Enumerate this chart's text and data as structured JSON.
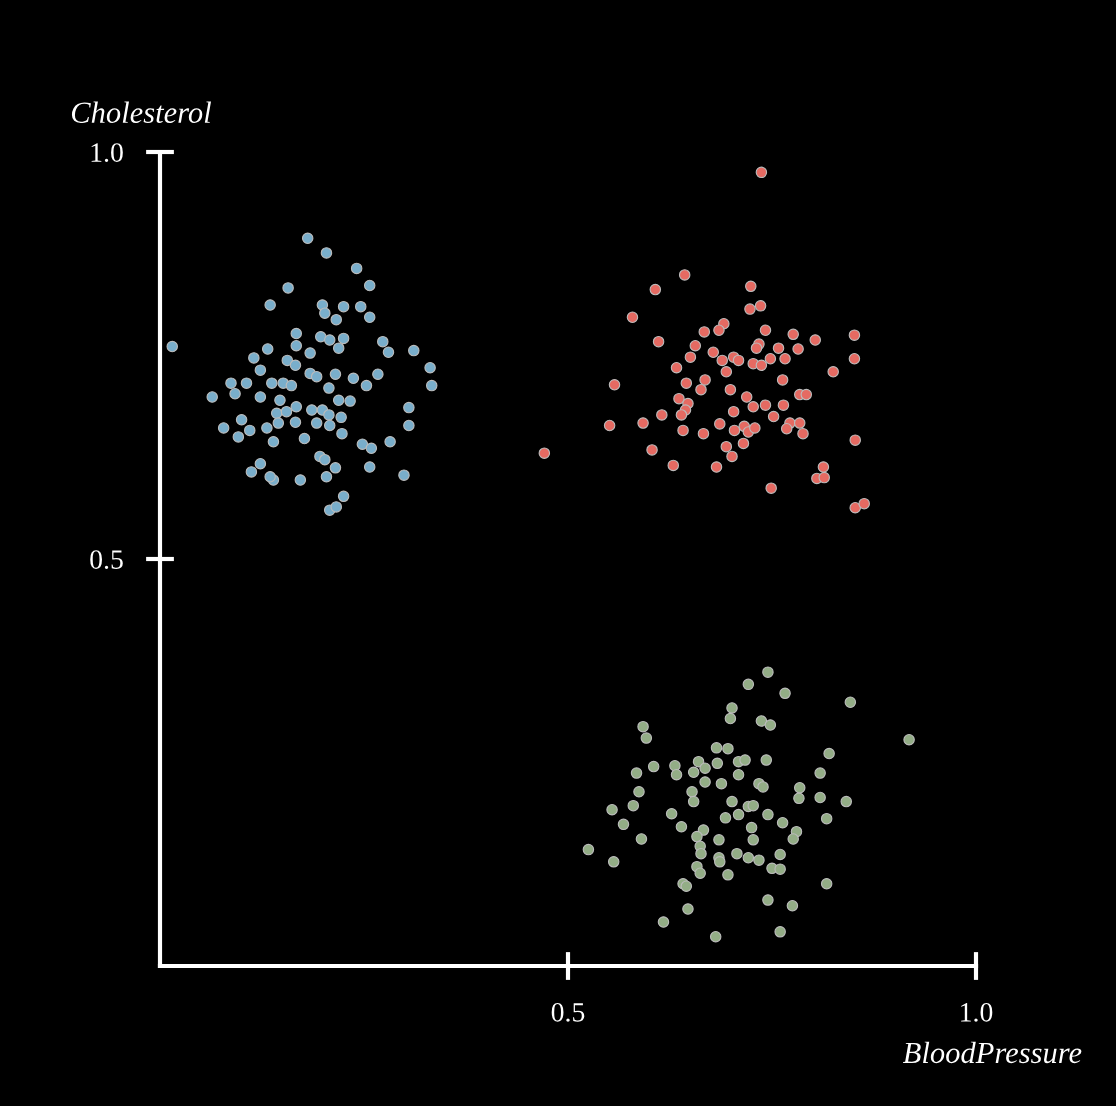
{
  "chart_data": {
    "type": "scatter",
    "xlabel": "BloodPressure",
    "ylabel": "Cholesterol",
    "xlim": [
      0,
      1.0
    ],
    "ylim": [
      0,
      1.0
    ],
    "xticks": [
      {
        "value": 0.5,
        "label": "0.5"
      },
      {
        "value": 1.0,
        "label": "1.0"
      }
    ],
    "yticks": [
      {
        "value": 0.5,
        "label": "0.5"
      },
      {
        "value": 1.0,
        "label": "1.0"
      }
    ],
    "grid": false,
    "marker": "circle",
    "series": [
      {
        "color": "#79aecb",
        "x": [
          0.181,
          0.204,
          0.241,
          0.157,
          0.257,
          0.135,
          0.199,
          0.225,
          0.246,
          0.202,
          0.216,
          0.257,
          0.167,
          0.197,
          0.208,
          0.225,
          0.273,
          0.28,
          0.311,
          0.015,
          0.132,
          0.167,
          0.184,
          0.219,
          0.115,
          0.156,
          0.166,
          0.123,
          0.184,
          0.192,
          0.215,
          0.237,
          0.267,
          0.331,
          0.333,
          0.087,
          0.106,
          0.137,
          0.151,
          0.161,
          0.207,
          0.253,
          0.064,
          0.092,
          0.123,
          0.147,
          0.219,
          0.233,
          0.143,
          0.155,
          0.167,
          0.186,
          0.199,
          0.207,
          0.222,
          0.305,
          0.1,
          0.078,
          0.11,
          0.131,
          0.145,
          0.166,
          0.192,
          0.208,
          0.223,
          0.305,
          0.096,
          0.139,
          0.177,
          0.248,
          0.259,
          0.282,
          0.196,
          0.202,
          0.215,
          0.257,
          0.123,
          0.112,
          0.139,
          0.135,
          0.172,
          0.204,
          0.299,
          0.225,
          0.208,
          0.216
        ],
        "values": [
          0.894,
          0.876,
          0.857,
          0.833,
          0.836,
          0.812,
          0.812,
          0.81,
          0.81,
          0.802,
          0.794,
          0.797,
          0.777,
          0.773,
          0.769,
          0.771,
          0.767,
          0.754,
          0.756,
          0.761,
          0.758,
          0.762,
          0.753,
          0.759,
          0.747,
          0.744,
          0.738,
          0.732,
          0.728,
          0.724,
          0.727,
          0.722,
          0.727,
          0.735,
          0.713,
          0.716,
          0.716,
          0.716,
          0.716,
          0.713,
          0.71,
          0.713,
          0.699,
          0.703,
          0.699,
          0.695,
          0.695,
          0.694,
          0.679,
          0.681,
          0.687,
          0.683,
          0.683,
          0.677,
          0.674,
          0.686,
          0.671,
          0.661,
          0.658,
          0.661,
          0.667,
          0.668,
          0.667,
          0.664,
          0.654,
          0.664,
          0.65,
          0.644,
          0.648,
          0.641,
          0.636,
          0.644,
          0.626,
          0.622,
          0.612,
          0.613,
          0.617,
          0.607,
          0.597,
          0.601,
          0.597,
          0.601,
          0.603,
          0.577,
          0.56,
          0.564
        ]
      },
      {
        "color": "#e56a62",
        "x": [
          0.737,
          0.643,
          0.607,
          0.724,
          0.579,
          0.723,
          0.736,
          0.691,
          0.667,
          0.685,
          0.611,
          0.656,
          0.734,
          0.742,
          0.776,
          0.803,
          0.851,
          0.678,
          0.703,
          0.731,
          0.758,
          0.782,
          0.65,
          0.689,
          0.709,
          0.727,
          0.748,
          0.766,
          0.851,
          0.633,
          0.694,
          0.737,
          0.825,
          0.668,
          0.645,
          0.663,
          0.699,
          0.763,
          0.557,
          0.719,
          0.742,
          0.764,
          0.784,
          0.792,
          0.636,
          0.647,
          0.644,
          0.703,
          0.727,
          0.615,
          0.639,
          0.592,
          0.686,
          0.716,
          0.752,
          0.772,
          0.784,
          0.788,
          0.551,
          0.641,
          0.666,
          0.704,
          0.721,
          0.729,
          0.768,
          0.852,
          0.694,
          0.701,
          0.715,
          0.603,
          0.471,
          0.629,
          0.682,
          0.813,
          0.805,
          0.814,
          0.749,
          0.852,
          0.863
        ],
        "values": [
          0.975,
          0.849,
          0.831,
          0.835,
          0.797,
          0.807,
          0.811,
          0.789,
          0.779,
          0.781,
          0.767,
          0.762,
          0.764,
          0.781,
          0.776,
          0.769,
          0.775,
          0.754,
          0.748,
          0.759,
          0.759,
          0.758,
          0.748,
          0.744,
          0.744,
          0.74,
          0.746,
          0.746,
          0.746,
          0.735,
          0.73,
          0.738,
          0.73,
          0.72,
          0.716,
          0.708,
          0.708,
          0.72,
          0.714,
          0.699,
          0.689,
          0.689,
          0.702,
          0.702,
          0.697,
          0.691,
          0.683,
          0.681,
          0.687,
          0.677,
          0.677,
          0.667,
          0.666,
          0.663,
          0.675,
          0.667,
          0.667,
          0.654,
          0.664,
          0.658,
          0.654,
          0.658,
          0.656,
          0.661,
          0.66,
          0.646,
          0.638,
          0.626,
          0.642,
          0.634,
          0.63,
          0.615,
          0.613,
          0.613,
          0.599,
          0.6,
          0.587,
          0.563,
          0.568
        ]
      },
      {
        "color": "#93ad86",
        "x": [
          0.745,
          0.721,
          0.766,
          0.846,
          0.701,
          0.699,
          0.737,
          0.748,
          0.592,
          0.596,
          0.918,
          0.682,
          0.696,
          0.82,
          0.743,
          0.709,
          0.717,
          0.66,
          0.605,
          0.631,
          0.584,
          0.633,
          0.654,
          0.668,
          0.683,
          0.709,
          0.809,
          0.734,
          0.739,
          0.784,
          0.688,
          0.668,
          0.587,
          0.652,
          0.783,
          0.809,
          0.841,
          0.58,
          0.554,
          0.627,
          0.654,
          0.701,
          0.721,
          0.727,
          0.745,
          0.709,
          0.693,
          0.817,
          0.568,
          0.639,
          0.666,
          0.725,
          0.763,
          0.78,
          0.776,
          0.59,
          0.658,
          0.685,
          0.662,
          0.727,
          0.525,
          0.663,
          0.685,
          0.707,
          0.721,
          0.734,
          0.76,
          0.556,
          0.658,
          0.662,
          0.686,
          0.696,
          0.75,
          0.76,
          0.641,
          0.645,
          0.817,
          0.745,
          0.775,
          0.647,
          0.617,
          0.681,
          0.76
        ],
        "values": [
          0.361,
          0.346,
          0.335,
          0.324,
          0.317,
          0.304,
          0.301,
          0.296,
          0.294,
          0.28,
          0.278,
          0.268,
          0.267,
          0.261,
          0.253,
          0.251,
          0.253,
          0.251,
          0.245,
          0.246,
          0.237,
          0.235,
          0.238,
          0.243,
          0.249,
          0.235,
          0.237,
          0.224,
          0.22,
          0.219,
          0.224,
          0.226,
          0.214,
          0.214,
          0.206,
          0.207,
          0.202,
          0.197,
          0.192,
          0.187,
          0.202,
          0.202,
          0.196,
          0.197,
          0.186,
          0.186,
          0.182,
          0.181,
          0.174,
          0.171,
          0.167,
          0.17,
          0.176,
          0.165,
          0.156,
          0.156,
          0.159,
          0.155,
          0.147,
          0.155,
          0.143,
          0.138,
          0.133,
          0.138,
          0.133,
          0.13,
          0.137,
          0.128,
          0.122,
          0.114,
          0.128,
          0.112,
          0.12,
          0.119,
          0.101,
          0.098,
          0.101,
          0.081,
          0.074,
          0.07,
          0.054,
          0.036,
          0.042
        ]
      }
    ]
  }
}
